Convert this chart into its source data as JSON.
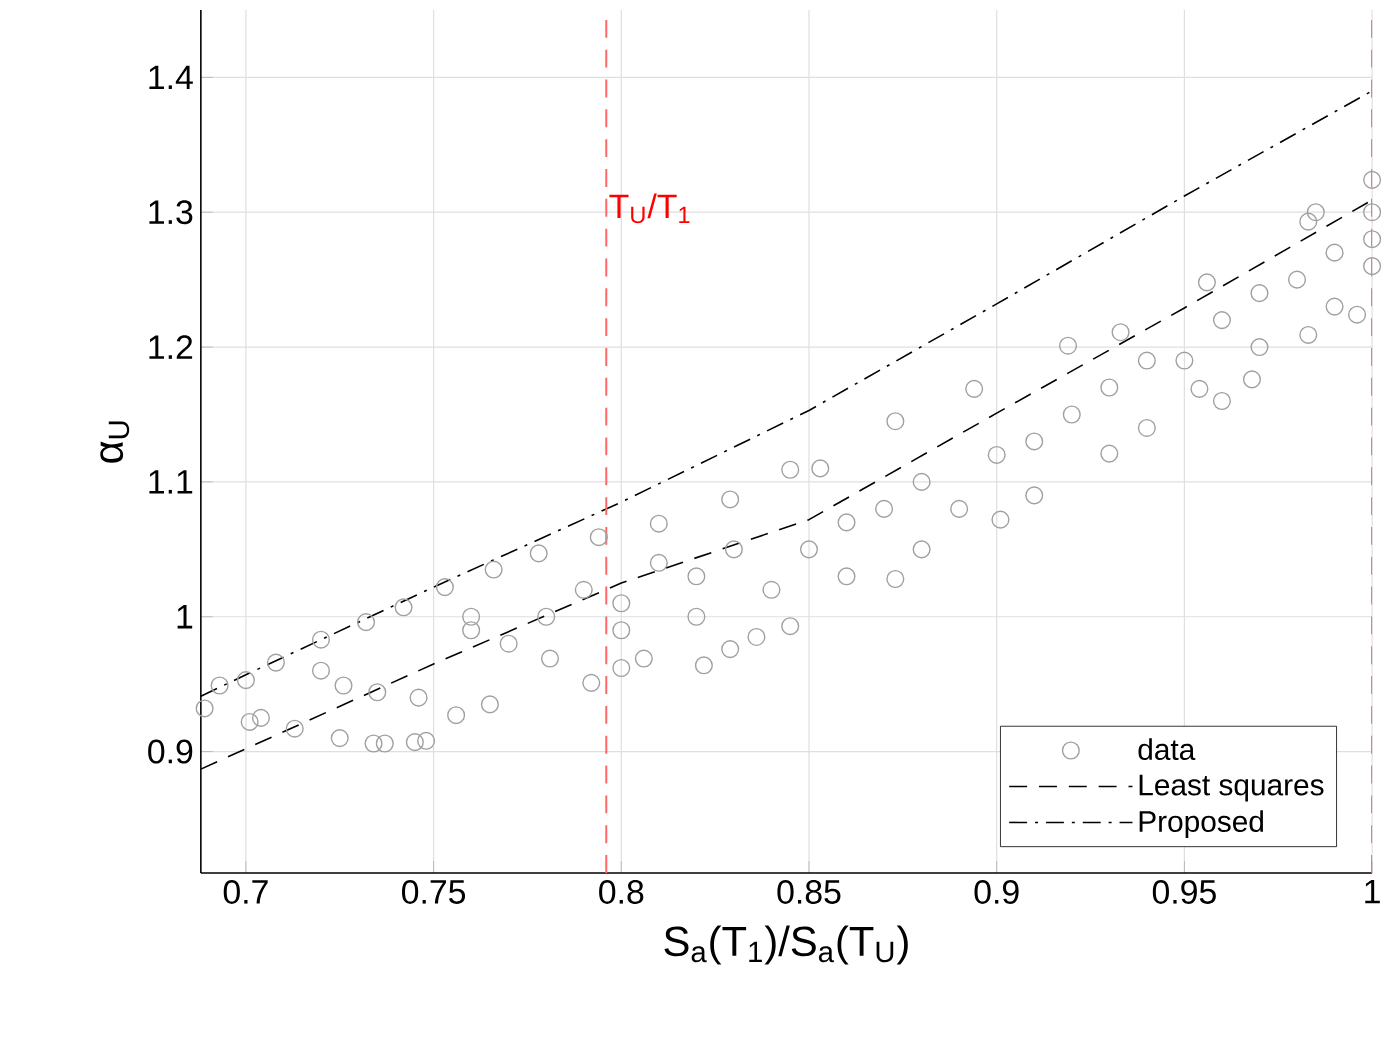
{
  "chart_data": {
    "type": "scatter",
    "xlabel": "S$_{a}$(T$_{1}$)/S$_{a}$(T$_{U}$)",
    "ylabel": "α$_{U}$",
    "xlim": [
      0.688,
      1.0
    ],
    "ylim": [
      0.81,
      1.45
    ],
    "xticks": [
      0.7,
      0.75,
      0.8,
      0.85,
      0.9,
      0.95,
      1
    ],
    "yticks": [
      0.9,
      1,
      1.1,
      1.2,
      1.3,
      1.4
    ],
    "grid": true,
    "legend": "bottom right",
    "series": [
      {
        "name": "data",
        "type": "scatter",
        "marker": "circle",
        "color": "#a0a0a0",
        "x": [
          0.76,
          0.77,
          0.79,
          0.8,
          0.81,
          0.82,
          0.83,
          0.84,
          0.86,
          0.86,
          0.88,
          0.88,
          0.89,
          0.91,
          0.91,
          0.93,
          0.94,
          0.94,
          0.96,
          0.96,
          0.97,
          0.97,
          0.99,
          0.99,
          1.0,
          0.985,
          0.689,
          0.701,
          0.704,
          0.713,
          0.725,
          0.734,
          0.737,
          0.745,
          0.748,
          0.756,
          0.726,
          0.735,
          0.746,
          0.765,
          0.792,
          0.8,
          0.822,
          0.829,
          0.836,
          0.693,
          0.7,
          0.708,
          0.72,
          0.732,
          0.742,
          0.753,
          0.766,
          0.778,
          0.794,
          0.81,
          0.829,
          0.845,
          0.853,
          0.873,
          0.894,
          0.919,
          0.933,
          0.956,
          0.983,
          1.0,
          0.845,
          0.873,
          0.901,
          0.93,
          0.954,
          0.968,
          0.983,
          0.996,
          1.0,
          0.781,
          0.806,
          0.72,
          0.76,
          0.8,
          0.85,
          0.9,
          0.95,
          1.0,
          0.98,
          0.92,
          0.87,
          0.82,
          0.78
        ],
        "values": [
          1.0,
          0.98,
          1.02,
          0.99,
          1.04,
          1.0,
          1.05,
          1.02,
          1.07,
          1.03,
          1.1,
          1.05,
          1.08,
          1.13,
          1.09,
          1.17,
          1.14,
          1.19,
          1.22,
          1.16,
          1.24,
          1.2,
          1.27,
          1.23,
          1.3,
          1.3,
          0.932,
          0.922,
          0.925,
          0.917,
          0.91,
          0.906,
          0.906,
          0.907,
          0.908,
          0.927,
          0.949,
          0.944,
          0.94,
          0.935,
          0.951,
          0.962,
          0.964,
          0.976,
          0.985,
          0.949,
          0.953,
          0.966,
          0.983,
          0.996,
          1.007,
          1.022,
          1.035,
          1.047,
          1.059,
          1.069,
          1.087,
          1.109,
          1.11,
          1.145,
          1.169,
          1.201,
          1.211,
          1.248,
          1.293,
          1.324,
          0.993,
          1.028,
          1.072,
          1.121,
          1.169,
          1.176,
          1.209,
          1.224,
          1.26,
          0.969,
          0.969,
          0.96,
          0.99,
          1.01,
          1.05,
          1.12,
          1.19,
          1.28,
          1.25,
          1.15,
          1.08,
          1.03,
          1.0
        ]
      },
      {
        "name": "Least squares",
        "type": "line",
        "line_style": "dashed",
        "color": "#000000",
        "x": [
          0.688,
          0.75,
          0.8,
          0.85,
          0.9,
          0.95,
          1.0
        ],
        "values": [
          0.887,
          0.965,
          1.025,
          1.072,
          1.151,
          1.229,
          1.309
        ]
      },
      {
        "name": "Proposed",
        "type": "line",
        "line_style": "dashdot",
        "color": "#000000",
        "x": [
          0.688,
          0.7,
          0.75,
          0.8,
          0.85,
          0.9,
          0.95,
          1.0
        ],
        "values": [
          0.941,
          0.957,
          1.022,
          1.085,
          1.153,
          1.232,
          1.312,
          1.39
        ]
      }
    ],
    "ref_lines": [
      {
        "axis": "x",
        "value": 0.796,
        "label": "T$_{U}$/T$_{1}$",
        "color": "#ff6666",
        "line_style": "dashed"
      },
      {
        "axis": "x",
        "value": 1.0,
        "color": "#ff6666",
        "line_style": "dashed"
      }
    ]
  }
}
